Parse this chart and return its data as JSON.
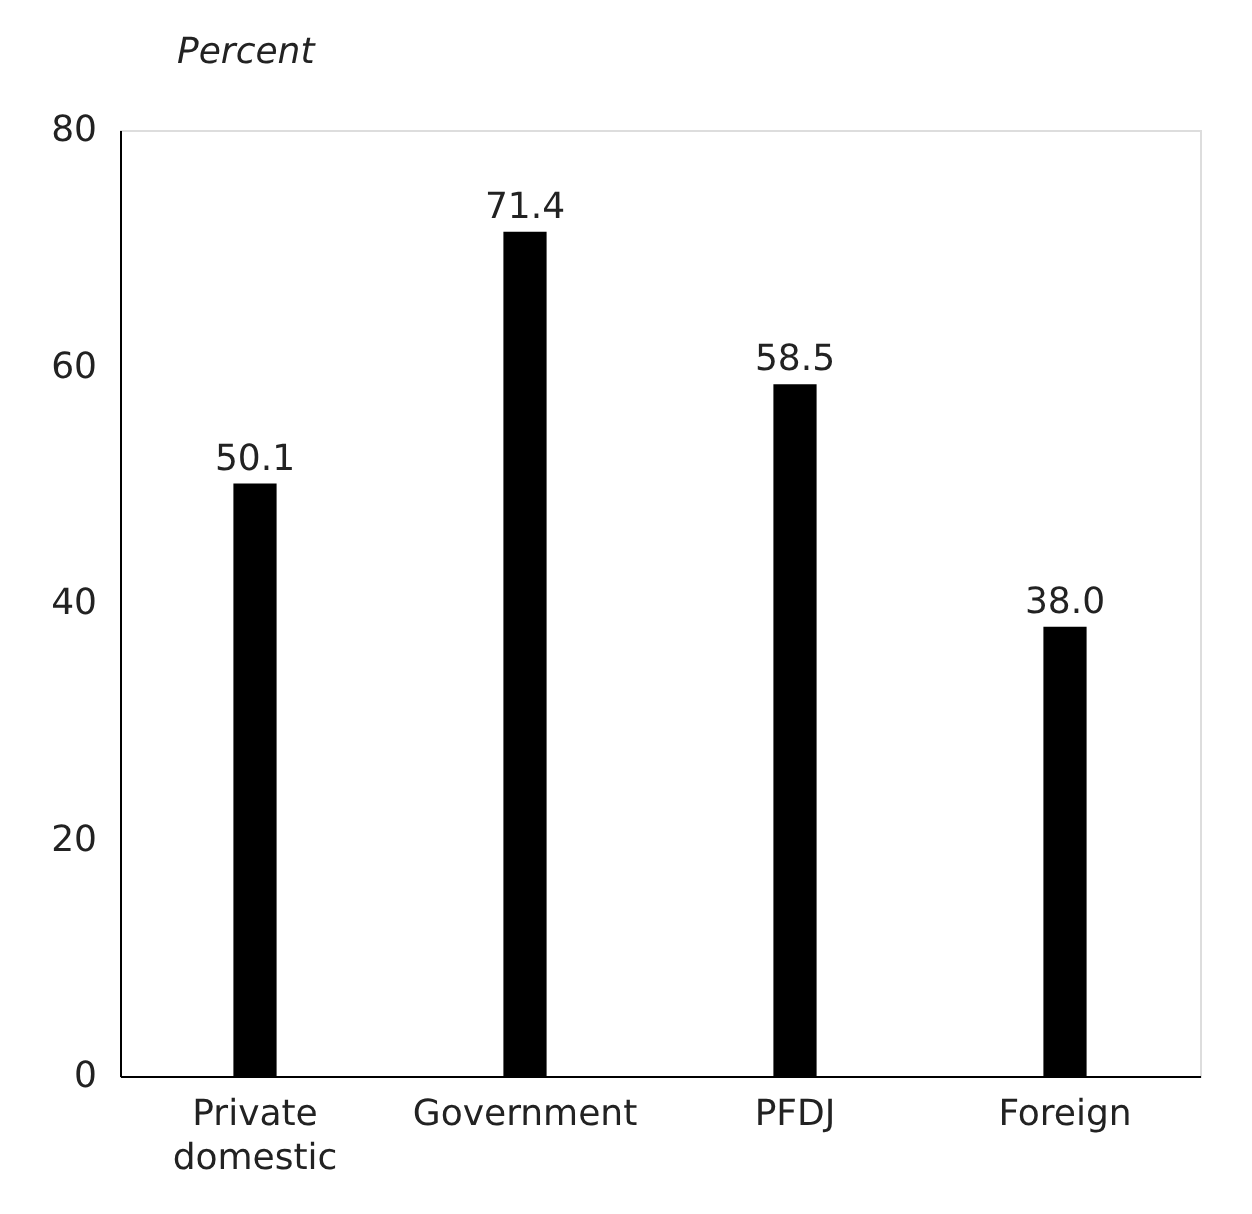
{
  "chart_data": {
    "type": "bar",
    "ylabel": "Percent",
    "categories": [
      "Private domestic",
      "Government",
      "PFDJ",
      "Foreign"
    ],
    "values": [
      50.1,
      71.4,
      58.5,
      38.0
    ],
    "value_labels": [
      "50.1",
      "71.4",
      "58.5",
      "38.0"
    ],
    "color": "#000000",
    "ylim": [
      0,
      80
    ],
    "yticks": [
      0,
      20,
      40,
      60,
      80
    ],
    "grid": false
  }
}
